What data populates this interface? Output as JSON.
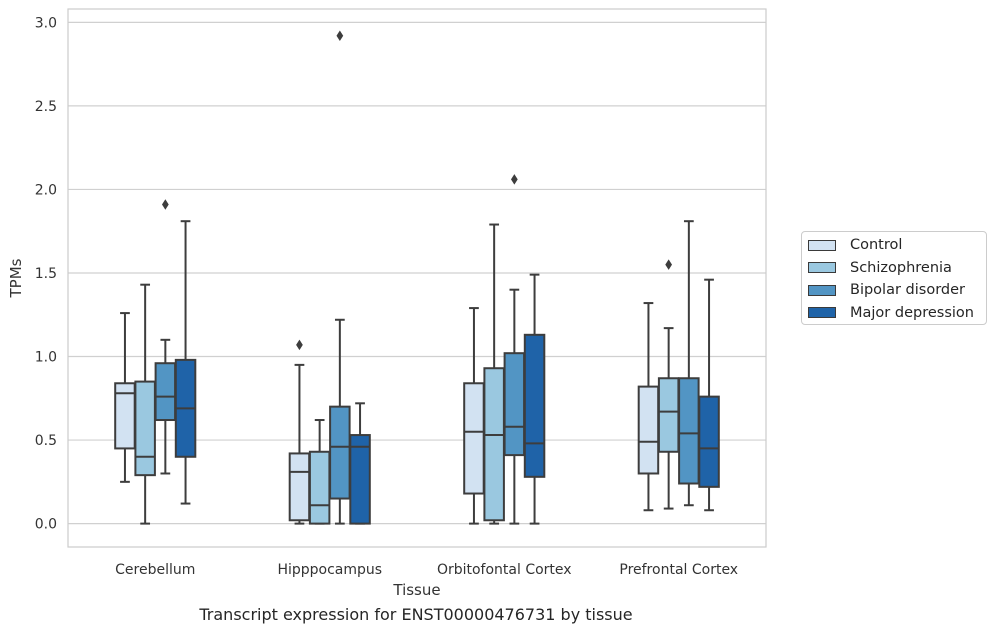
{
  "chart_data": {
    "type": "box",
    "xlabel": "Tissue",
    "ylabel": "TPMs",
    "ylim": [
      -0.14,
      3.08
    ],
    "yticks": [
      "0.0",
      "0.5",
      "1.0",
      "1.5",
      "2.0",
      "2.5",
      "3.0"
    ],
    "ytick_values": [
      0,
      0.5,
      1.0,
      1.5,
      2.0,
      2.5,
      3.0
    ],
    "grid": true,
    "legend_position": "right, outside plot",
    "categories": [
      "Cerebellum",
      "Hipppocampus",
      "Orbitofontal Cortex",
      "Prefrontal Cortex"
    ],
    "series": [
      {
        "name": "Control",
        "color": "#d2e2f2",
        "boxes": [
          {
            "whislo": 0.25,
            "q1": 0.45,
            "med": 0.78,
            "q3": 0.84,
            "whishi": 1.26,
            "fliers": []
          },
          {
            "whislo": 0.0,
            "q1": 0.02,
            "med": 0.31,
            "q3": 0.42,
            "whishi": 0.95,
            "fliers": [
              1.07
            ]
          },
          {
            "whislo": 0.0,
            "q1": 0.18,
            "med": 0.55,
            "q3": 0.84,
            "whishi": 1.29,
            "fliers": []
          },
          {
            "whislo": 0.08,
            "q1": 0.3,
            "med": 0.49,
            "q3": 0.82,
            "whishi": 1.32,
            "fliers": []
          }
        ]
      },
      {
        "name": "Schizophrenia",
        "color": "#9ac8e0",
        "boxes": [
          {
            "whislo": 0.0,
            "q1": 0.29,
            "med": 0.4,
            "q3": 0.85,
            "whishi": 1.43,
            "fliers": []
          },
          {
            "whislo": 0.0,
            "q1": 0.0,
            "med": 0.11,
            "q3": 0.43,
            "whishi": 0.62,
            "fliers": []
          },
          {
            "whislo": 0.0,
            "q1": 0.02,
            "med": 0.53,
            "q3": 0.93,
            "whishi": 1.79,
            "fliers": []
          },
          {
            "whislo": 0.09,
            "q1": 0.43,
            "med": 0.67,
            "q3": 0.87,
            "whishi": 1.17,
            "fliers": [
              1.55
            ]
          }
        ]
      },
      {
        "name": "Bipolar disorder",
        "color": "#5295c4",
        "boxes": [
          {
            "whislo": 0.3,
            "q1": 0.62,
            "med": 0.76,
            "q3": 0.96,
            "whishi": 1.1,
            "fliers": [
              1.91
            ]
          },
          {
            "whislo": 0.0,
            "q1": 0.15,
            "med": 0.46,
            "q3": 0.7,
            "whishi": 1.22,
            "fliers": [
              2.92
            ]
          },
          {
            "whislo": 0.0,
            "q1": 0.41,
            "med": 0.58,
            "q3": 1.02,
            "whishi": 1.4,
            "fliers": [
              2.06
            ]
          },
          {
            "whislo": 0.11,
            "q1": 0.24,
            "med": 0.54,
            "q3": 0.87,
            "whishi": 1.81,
            "fliers": []
          }
        ]
      },
      {
        "name": "Major depression",
        "color": "#1f63a8",
        "boxes": [
          {
            "whislo": 0.12,
            "q1": 0.4,
            "med": 0.69,
            "q3": 0.98,
            "whishi": 1.81,
            "fliers": []
          },
          {
            "whislo": 0.0,
            "q1": 0.0,
            "med": 0.46,
            "q3": 0.53,
            "whishi": 0.72,
            "fliers": []
          },
          {
            "whislo": 0.0,
            "q1": 0.28,
            "med": 0.48,
            "q3": 1.13,
            "whishi": 1.49,
            "fliers": []
          },
          {
            "whislo": 0.08,
            "q1": 0.22,
            "med": 0.45,
            "q3": 0.76,
            "whishi": 1.46,
            "fliers": []
          }
        ]
      }
    ]
  },
  "caption": "Transcript expression for ENST00000476731 by tissue"
}
